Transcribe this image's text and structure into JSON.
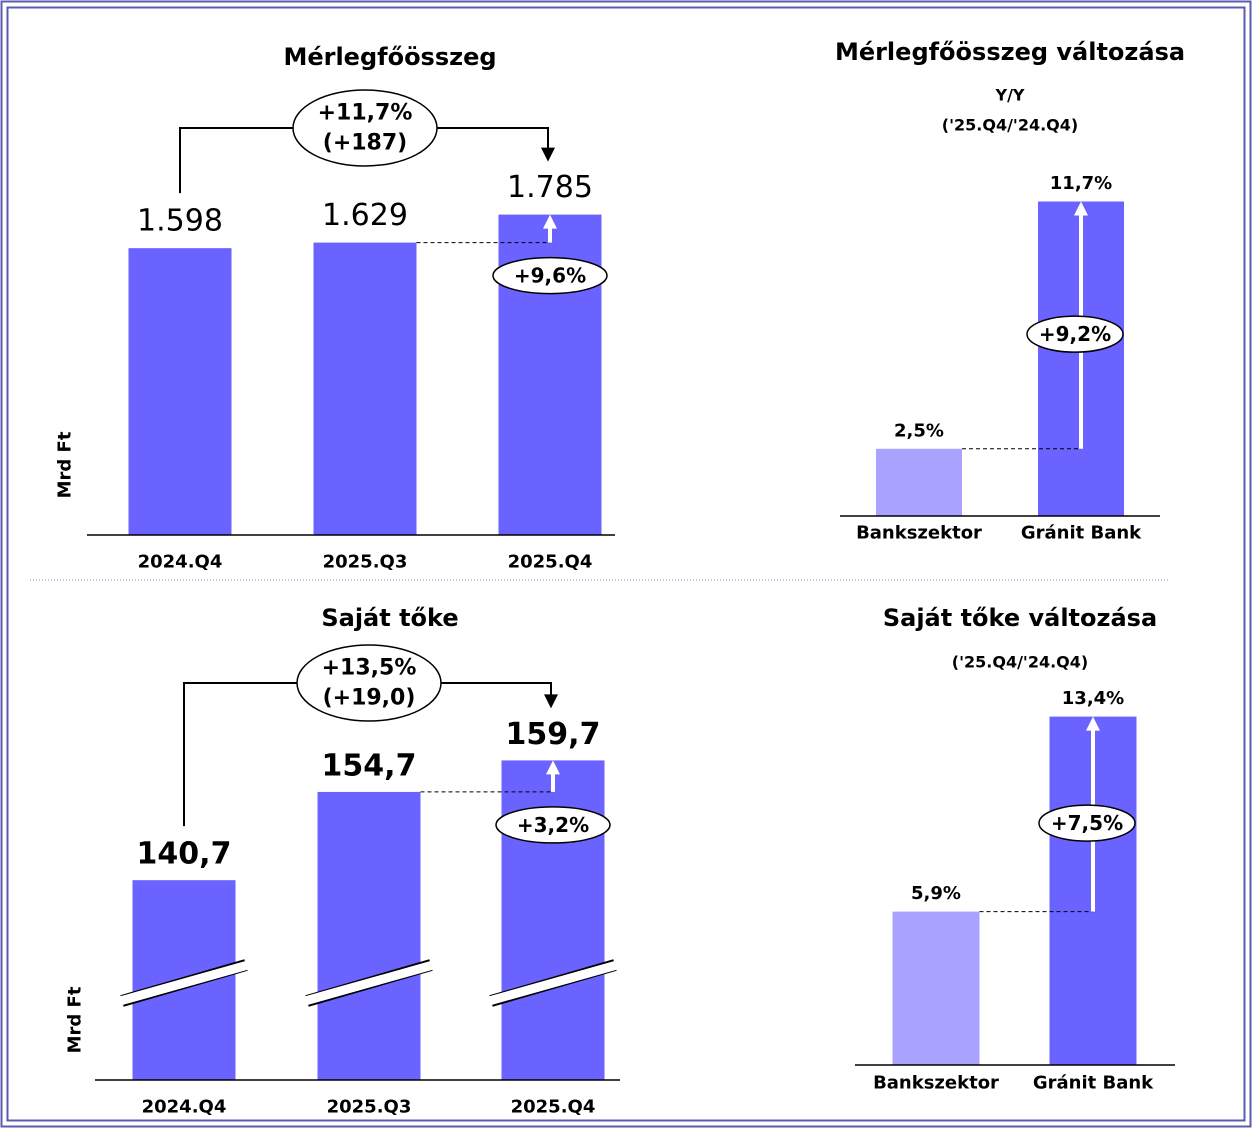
{
  "chart_data": [
    {
      "type": "bar",
      "title": "Mérlegfőösszeg",
      "y_label": "Mrd Ft",
      "categories": [
        "2024.Q4",
        "2025.Q3",
        "2025.Q4"
      ],
      "values": [
        1598,
        1629,
        1785
      ],
      "value_labels": [
        "1.598",
        "1.629",
        "1.785"
      ],
      "color": "#6a63ff",
      "ylim": [
        0,
        2000
      ],
      "annotations": {
        "total_change": [
          "+11,7%",
          "(+187)"
        ],
        "last_change": "+9,6%"
      }
    },
    {
      "type": "bar",
      "title": "Mérlegfőösszeg változása",
      "subtitle": [
        "Y/Y",
        "('25.Q4/'24.Q4)"
      ],
      "categories": [
        "Bankszektor",
        "Gránit Bank"
      ],
      "values": [
        2.5,
        11.7
      ],
      "value_labels": [
        "2,5%",
        "11,7%"
      ],
      "colors": [
        "#a9a3ff",
        "#6a63ff"
      ],
      "ylim": [
        0,
        12.5
      ],
      "annotations": {
        "difference": "+9,2%"
      }
    },
    {
      "type": "bar",
      "title": "Saját tőke",
      "y_label": "Mrd Ft",
      "categories": [
        "2024.Q4",
        "2025.Q3",
        "2025.Q4"
      ],
      "values": [
        140.7,
        154.7,
        159.7
      ],
      "value_labels": [
        "140,7",
        "154,7",
        "159,7"
      ],
      "color": "#6a63ff",
      "ylim": [
        109,
        165
      ],
      "axis_break": true,
      "annotations": {
        "total_change": [
          "+13,5%",
          "(+19,0)"
        ],
        "last_change": "+3,2%"
      }
    },
    {
      "type": "bar",
      "title": "Saját tőke változása",
      "subtitle": [
        "('25.Q4/'24.Q4)"
      ],
      "categories": [
        "Bankszektor",
        "Gránit Bank"
      ],
      "values": [
        5.9,
        13.4
      ],
      "value_labels": [
        "5,9%",
        "13,4%"
      ],
      "colors": [
        "#a9a3ff",
        "#6a63ff"
      ],
      "ylim": [
        0,
        14
      ],
      "annotations": {
        "difference": "+7,5%"
      }
    }
  ]
}
